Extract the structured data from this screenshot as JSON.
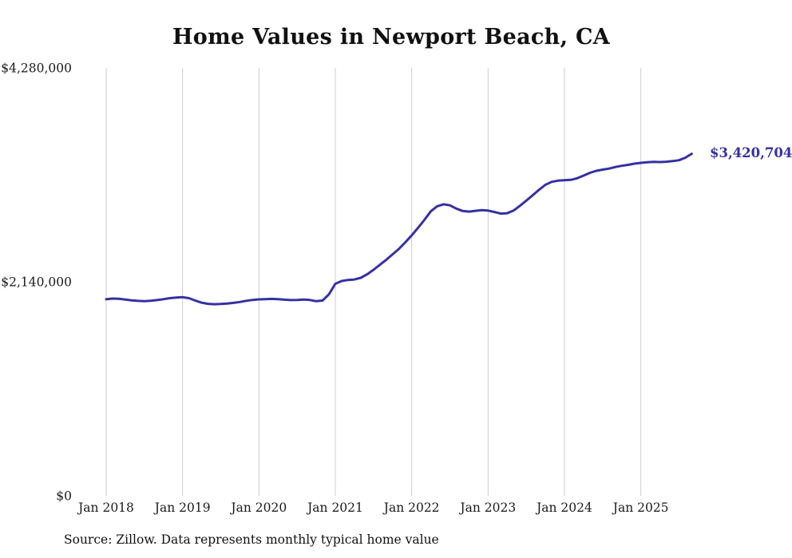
{
  "title": "Home Values in Newport Beach, CA",
  "source_note": "Source: Zillow. Data represents monthly typical home value",
  "end_label": "$3,420,704",
  "colors": {
    "line": "#3531a2",
    "gridline": "#cccccc",
    "text": "#1a1a1a",
    "background": "#ffffff"
  },
  "chart_data": {
    "type": "line",
    "title": "Home Values in Newport Beach, CA",
    "ylabel": "",
    "xlabel": "",
    "ylim": [
      0,
      4280000
    ],
    "grid": "vertical-only",
    "legend": "none",
    "y_ticks": [
      {
        "value": 0,
        "label": "$0"
      },
      {
        "value": 2140000,
        "label": "$2,140,000"
      },
      {
        "value": 4280000,
        "label": "$4,280,000"
      }
    ],
    "x_ticks": [
      {
        "month_index": 0,
        "label": "Jan 2018"
      },
      {
        "month_index": 12,
        "label": "Jan 2019"
      },
      {
        "month_index": 24,
        "label": "Jan 2020"
      },
      {
        "month_index": 36,
        "label": "Jan 2021"
      },
      {
        "month_index": 48,
        "label": "Jan 2022"
      },
      {
        "month_index": 60,
        "label": "Jan 2023"
      },
      {
        "month_index": 72,
        "label": "Jan 2024"
      },
      {
        "month_index": 84,
        "label": "Jan 2025"
      }
    ],
    "series": [
      {
        "name": "Typical home value",
        "color": "#3531a2",
        "x_start": "2018-01",
        "x_interval": "monthly",
        "latest_label": "$3,420,704",
        "values": [
          1965000,
          1972000,
          1970000,
          1962000,
          1955000,
          1949000,
          1947000,
          1950000,
          1957000,
          1966000,
          1976000,
          1982000,
          1986000,
          1976000,
          1952000,
          1931000,
          1920000,
          1916000,
          1918000,
          1923000,
          1929000,
          1938000,
          1950000,
          1959000,
          1964000,
          1967000,
          1969000,
          1967000,
          1961000,
          1957000,
          1959000,
          1963000,
          1958000,
          1946000,
          1952000,
          2015000,
          2120000,
          2148000,
          2158000,
          2163000,
          2180000,
          2215000,
          2260000,
          2310000,
          2360000,
          2415000,
          2470000,
          2535000,
          2605000,
          2680000,
          2760000,
          2845000,
          2895000,
          2915000,
          2905000,
          2872000,
          2848000,
          2842000,
          2850000,
          2856000,
          2852000,
          2838000,
          2822000,
          2826000,
          2852000,
          2900000,
          2952000,
          3005000,
          3060000,
          3110000,
          3140000,
          3152000,
          3156000,
          3160000,
          3176000,
          3202000,
          3230000,
          3250000,
          3262000,
          3272000,
          3288000,
          3300000,
          3310000,
          3322000,
          3330000,
          3336000,
          3340000,
          3338000,
          3341000,
          3347000,
          3356000,
          3382000,
          3420704
        ]
      }
    ]
  }
}
